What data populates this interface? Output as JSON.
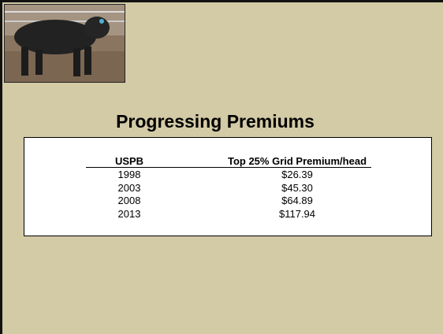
{
  "title": "Progressing Premiums",
  "table": {
    "header": [
      "USPB",
      "Top 25% Grid Premium/head"
    ],
    "rows": [
      [
        "1998",
        "$26.39"
      ],
      [
        "2003",
        "$45.30"
      ],
      [
        "2008",
        "$64.89"
      ],
      [
        "2013",
        "$117.94"
      ]
    ]
  }
}
